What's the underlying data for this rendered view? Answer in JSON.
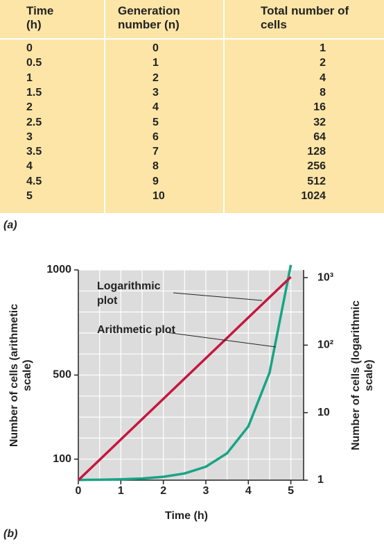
{
  "table": {
    "headers": [
      "Time (h)",
      "Generation number (n)",
      "Total number of cells"
    ],
    "rows": [
      [
        "0",
        "0",
        "1"
      ],
      [
        "0.5",
        "1",
        "2"
      ],
      [
        "1",
        "2",
        "4"
      ],
      [
        "1.5",
        "3",
        "8"
      ],
      [
        "2",
        "4",
        "16"
      ],
      [
        "2.5",
        "5",
        "32"
      ],
      [
        "3",
        "6",
        "64"
      ],
      [
        "3.5",
        "7",
        "128"
      ],
      [
        "4",
        "8",
        "256"
      ],
      [
        "4.5",
        "9",
        "512"
      ],
      [
        "5",
        "10",
        "1024"
      ]
    ],
    "caption": "(a)"
  },
  "chart_data": {
    "type": "line",
    "caption": "(b)",
    "x_label": "Time (h)",
    "y_label": "Number of cells (arithmetic scale)",
    "y2_label": "Number of cells (logarithmic scale)",
    "x": [
      0,
      0.5,
      1,
      1.5,
      2,
      2.5,
      3,
      3.5,
      4,
      4.5,
      5
    ],
    "series": [
      {
        "name": "Arithmetic plot",
        "color": "#17a486",
        "values": [
          1,
          2,
          4,
          8,
          16,
          32,
          64,
          128,
          256,
          512,
          1024
        ]
      },
      {
        "name": "Logarithmic plot",
        "color": "#c5163f",
        "axis": "y2",
        "values": [
          1,
          2,
          4,
          8,
          16,
          32,
          64,
          128,
          256,
          512,
          1024
        ]
      }
    ],
    "xlim": [
      0,
      5.3
    ],
    "xticks": [
      0,
      1,
      2,
      3,
      4,
      5
    ],
    "ylim": [
      0,
      1000
    ],
    "yticks": [
      100,
      500,
      1000
    ],
    "y2lim": [
      1,
      1300
    ],
    "y2_log": true,
    "y2ticks": [
      1,
      10,
      {
        "value": 100,
        "label": "10²"
      },
      {
        "value": 1000,
        "label": "10³"
      }
    ],
    "grid": true
  }
}
